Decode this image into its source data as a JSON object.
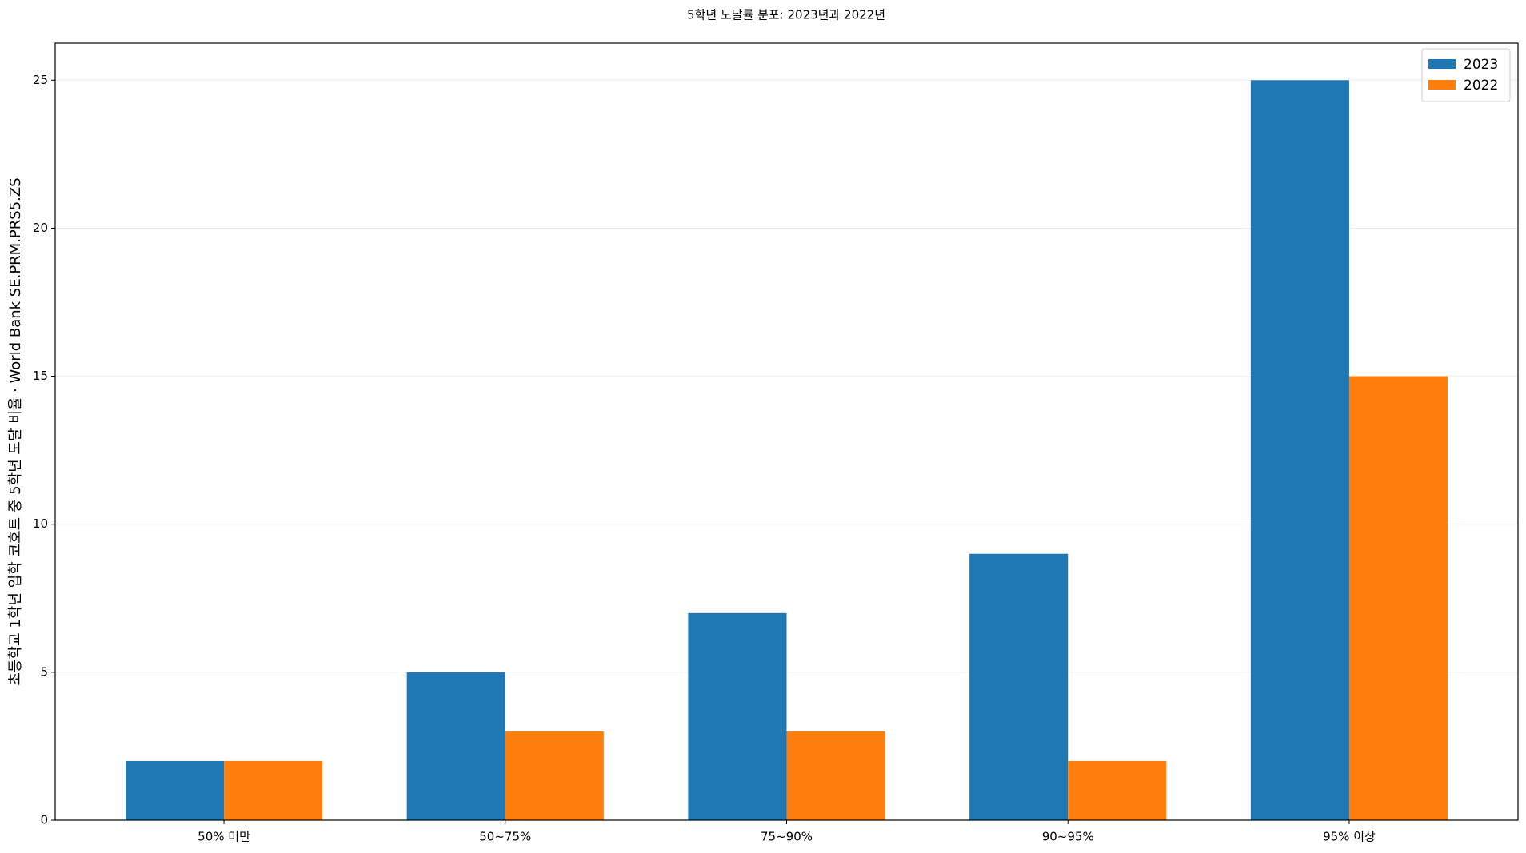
{
  "chart_data": {
    "type": "bar",
    "title": "5학년 도달률 분포: 2023년과 2022년",
    "y_label": "초등학교 1학년 입학 코호트 중 5학년 도달 비율 · World Bank SE.PRM.PRS5.ZS",
    "categories": [
      "50% 미만",
      "50~75%",
      "75~90%",
      "90~95%",
      "95% 이상"
    ],
    "series": [
      {
        "name": "2023",
        "color": "#1f77b4",
        "values": [
          2,
          5,
          7,
          9,
          25
        ]
      },
      {
        "name": "2022",
        "color": "#ff7f0e",
        "values": [
          2,
          3,
          3,
          2,
          15
        ]
      }
    ],
    "ylim": [
      0,
      26.25
    ],
    "yticks": [
      0,
      5,
      10,
      15,
      20,
      25
    ],
    "grid": true,
    "legend": "upper right"
  }
}
